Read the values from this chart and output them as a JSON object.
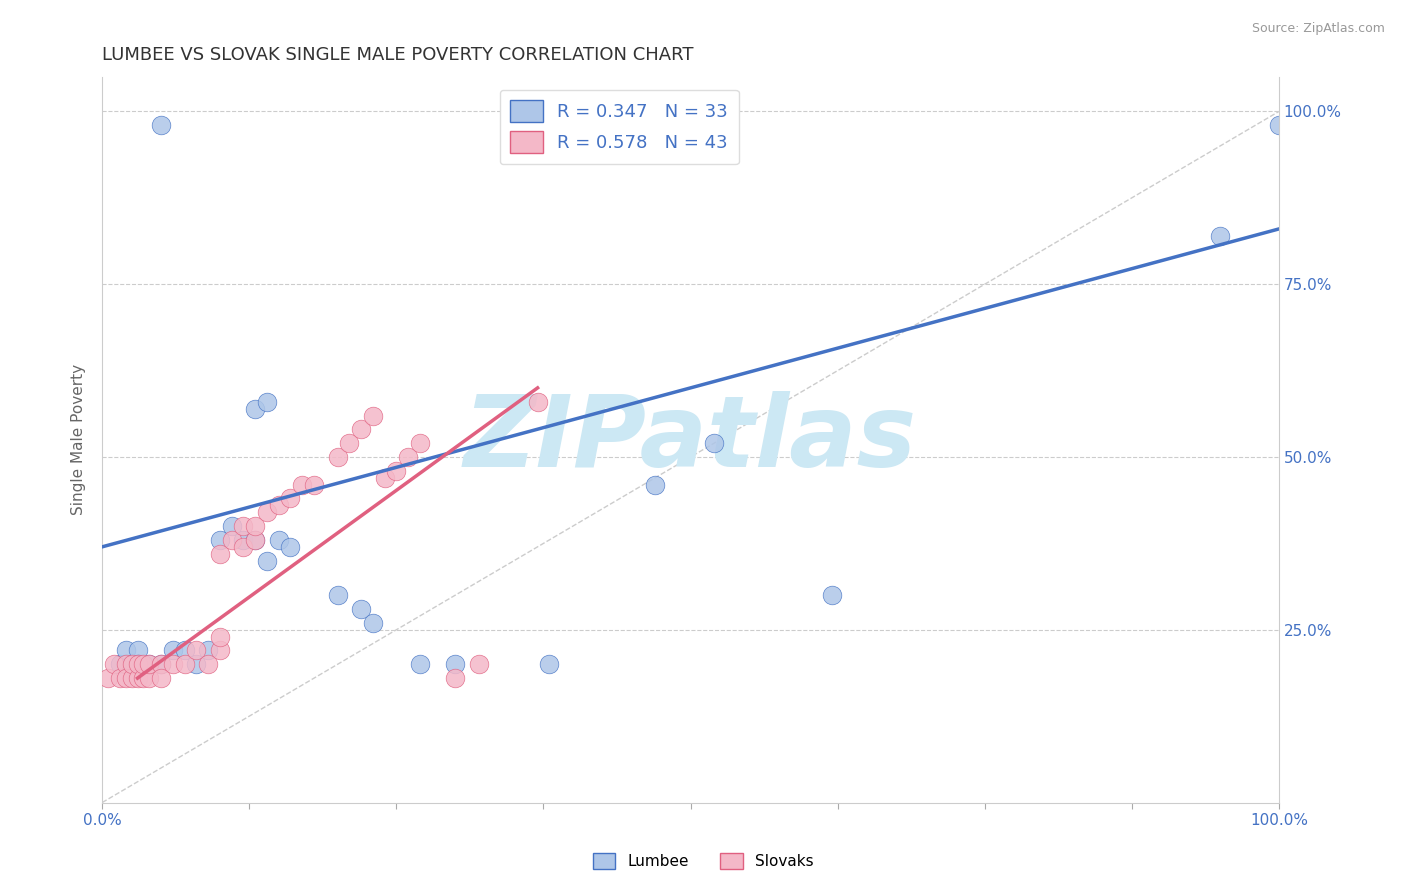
{
  "title": "LUMBEE VS SLOVAK SINGLE MALE POVERTY CORRELATION CHART",
  "source": "Source: ZipAtlas.com",
  "ylabel": "Single Male Poverty",
  "xlim": [
    0.0,
    1.0
  ],
  "ylim": [
    0.0,
    1.05
  ],
  "lumbee_R": 0.347,
  "lumbee_N": 33,
  "slovak_R": 0.578,
  "slovak_N": 43,
  "lumbee_color": "#aec6e8",
  "slovak_color": "#f4b8c8",
  "lumbee_line_color": "#4472c4",
  "slovak_line_color": "#e06080",
  "lumbee_x": [
    0.02,
    0.05,
    0.13,
    0.14,
    0.015,
    0.02,
    0.025,
    0.03,
    0.03,
    0.04,
    0.05,
    0.06,
    0.07,
    0.08,
    0.09,
    0.1,
    0.11,
    0.12,
    0.13,
    0.14,
    0.15,
    0.16,
    0.2,
    0.22,
    0.23,
    0.27,
    0.3,
    0.38,
    0.47,
    0.52,
    0.62,
    0.95,
    1.0
  ],
  "lumbee_y": [
    0.2,
    0.98,
    0.57,
    0.58,
    0.2,
    0.22,
    0.2,
    0.22,
    0.2,
    0.2,
    0.2,
    0.22,
    0.22,
    0.2,
    0.22,
    0.38,
    0.4,
    0.38,
    0.38,
    0.35,
    0.38,
    0.37,
    0.3,
    0.28,
    0.26,
    0.2,
    0.2,
    0.2,
    0.46,
    0.52,
    0.3,
    0.82,
    0.98
  ],
  "slovak_x": [
    0.005,
    0.01,
    0.015,
    0.02,
    0.02,
    0.025,
    0.025,
    0.03,
    0.03,
    0.035,
    0.035,
    0.04,
    0.04,
    0.05,
    0.05,
    0.06,
    0.07,
    0.08,
    0.09,
    0.1,
    0.1,
    0.1,
    0.11,
    0.12,
    0.12,
    0.13,
    0.13,
    0.14,
    0.15,
    0.16,
    0.17,
    0.18,
    0.2,
    0.21,
    0.22,
    0.23,
    0.24,
    0.25,
    0.26,
    0.27,
    0.3,
    0.32,
    0.37
  ],
  "slovak_y": [
    0.18,
    0.2,
    0.18,
    0.2,
    0.18,
    0.18,
    0.2,
    0.18,
    0.2,
    0.18,
    0.2,
    0.18,
    0.2,
    0.2,
    0.18,
    0.2,
    0.2,
    0.22,
    0.2,
    0.22,
    0.24,
    0.36,
    0.38,
    0.37,
    0.4,
    0.38,
    0.4,
    0.42,
    0.43,
    0.44,
    0.46,
    0.46,
    0.5,
    0.52,
    0.54,
    0.56,
    0.47,
    0.48,
    0.5,
    0.52,
    0.18,
    0.2,
    0.58
  ],
  "lumbee_line_x0": 0.0,
  "lumbee_line_y0": 0.37,
  "lumbee_line_x1": 1.0,
  "lumbee_line_y1": 0.83,
  "slovak_line_x0": 0.03,
  "slovak_line_y0": 0.18,
  "slovak_line_x1": 0.37,
  "slovak_line_y1": 0.6,
  "watermark": "ZIPatlas",
  "watermark_color": "#cce8f4",
  "background_color": "#ffffff",
  "grid_color": "#cccccc"
}
